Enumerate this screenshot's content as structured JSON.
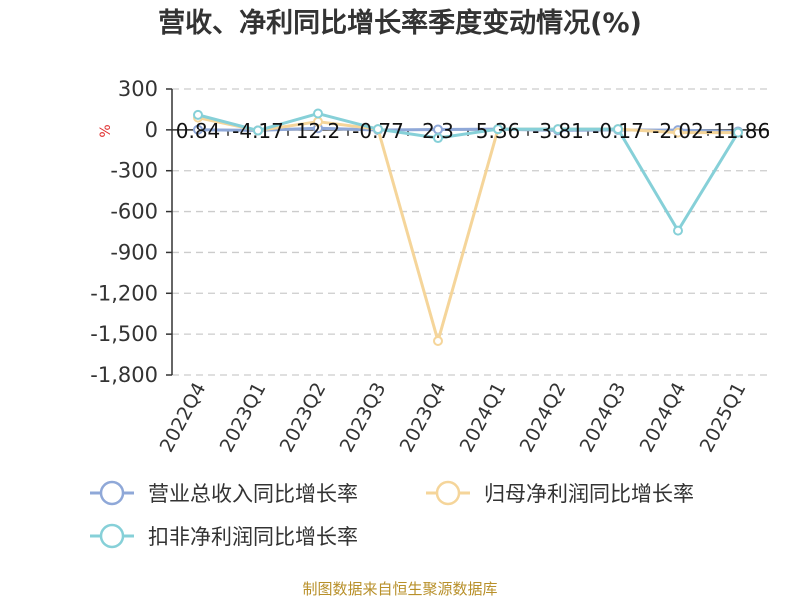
{
  "chart_data": {
    "type": "line",
    "title": "营收、净利同比增长率季度变动情况(%)",
    "unit_label": "%",
    "categories": [
      "2022Q4",
      "2023Q1",
      "2023Q2",
      "2023Q3",
      "2023Q4",
      "2024Q1",
      "2024Q2",
      "2024Q3",
      "2024Q4",
      "2025Q1"
    ],
    "ylim": [
      -1800,
      300
    ],
    "yticks": [
      300,
      0,
      -300,
      -600,
      -900,
      -1200,
      -1500,
      -1800
    ],
    "ytick_labels": [
      "300",
      "0",
      "-300",
      "-600",
      "-900",
      "-1,200",
      "-1,500",
      "-1,800"
    ],
    "grid": true,
    "legend_position": "bottom",
    "data_labels": [
      "0.84",
      "-4.17",
      "12.2",
      "-0.77",
      "2.3",
      "5.36",
      "-3.81",
      "-0.17",
      "-2.02",
      "-11.86"
    ],
    "series": [
      {
        "name": "营业总收入同比增长率",
        "color": "#8fa8d8",
        "values": [
          0.84,
          -4.17,
          12.2,
          -0.77,
          2.3,
          5.36,
          -3.81,
          -0.17,
          -2.02,
          -11.86
        ]
      },
      {
        "name": "归母净利润同比增长率",
        "color": "#f5d59a",
        "values": [
          90,
          -5,
          60,
          5,
          -1550,
          5,
          5,
          5,
          -20,
          -20
        ]
      },
      {
        "name": "扣非净利润同比增长率",
        "color": "#86d0d8",
        "values": [
          110,
          -5,
          120,
          5,
          -60,
          5,
          5,
          5,
          -740,
          -20
        ]
      }
    ]
  },
  "source": "制图数据来自恒生聚源数据库"
}
